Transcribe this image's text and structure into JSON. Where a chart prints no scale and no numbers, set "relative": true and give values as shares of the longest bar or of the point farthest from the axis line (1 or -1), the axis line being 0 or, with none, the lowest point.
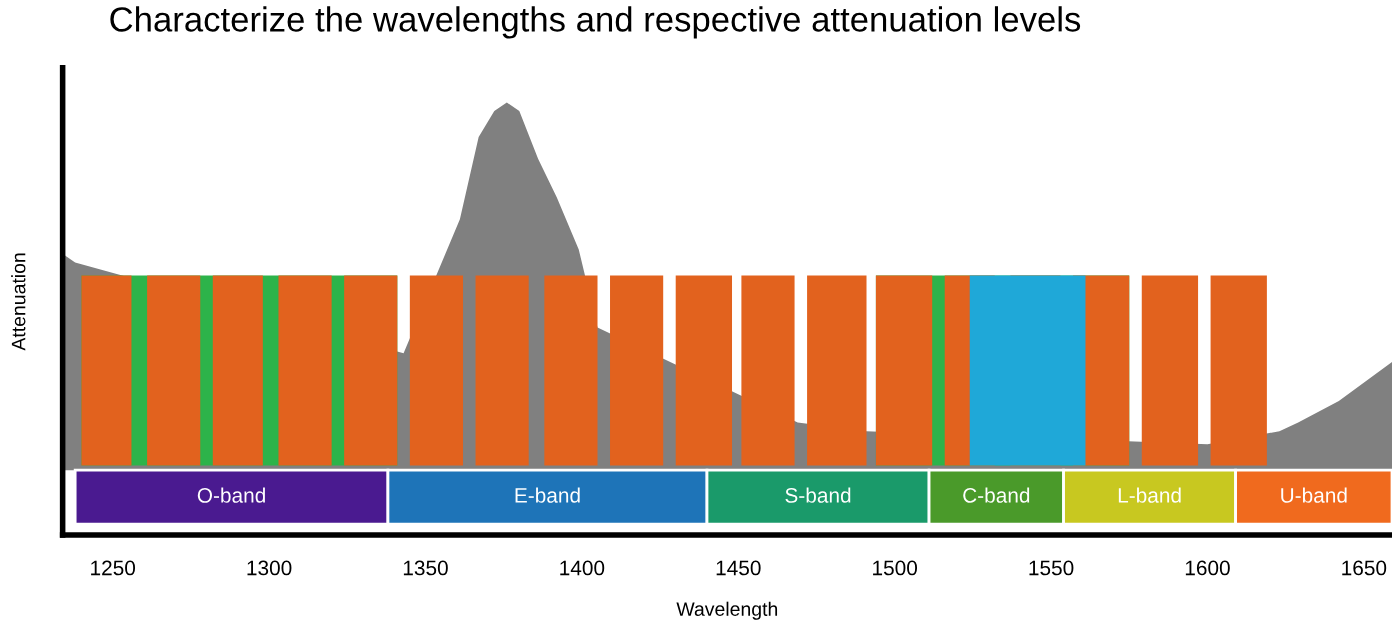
{
  "chart_data": {
    "type": "area",
    "relative": true,
    "title": "Characterize the wavelengths and respective attenuation levels",
    "xlabel": "Wavelength",
    "ylabel": "Attenuation",
    "xlim": [
      1234,
      1659
    ],
    "xticks": [
      1250,
      1300,
      1350,
      1400,
      1450,
      1500,
      1550,
      1600,
      1650
    ],
    "grid": false,
    "legend": false,
    "series": [
      {
        "color": "#808080",
        "x": [
          1234,
          1238,
          1343,
          1361,
          1367,
          1372,
          1376,
          1380,
          1386,
          1392,
          1399,
          1405,
          1469,
          1491,
          1600,
          1623,
          1629,
          1642,
          1659
        ],
        "values": [
          0.65,
          0.63,
          0.42,
          0.73,
          0.92,
          0.98,
          1.0,
          0.98,
          0.87,
          0.78,
          0.66,
          0.48,
          0.26,
          0.24,
          0.21,
          0.24,
          0.26,
          0.31,
          0.4
        ]
      }
    ],
    "bands": [
      {
        "axis": "x",
        "from": 1240,
        "to": 1341,
        "color": "#2db34a"
      },
      {
        "axis": "x",
        "from": 1494,
        "to": 1575,
        "color": "#2db34a"
      },
      {
        "axis": "x",
        "from": 1240,
        "to": 1256,
        "color": "#e2621e"
      },
      {
        "axis": "x",
        "from": 1261,
        "to": 1278,
        "color": "#e2621e"
      },
      {
        "axis": "x",
        "from": 1282,
        "to": 1298,
        "color": "#e2621e"
      },
      {
        "axis": "x",
        "from": 1303,
        "to": 1320,
        "color": "#e2621e"
      },
      {
        "axis": "x",
        "from": 1324,
        "to": 1341,
        "color": "#e2621e"
      },
      {
        "axis": "x",
        "from": 1345,
        "to": 1362,
        "color": "#e2621e"
      },
      {
        "axis": "x",
        "from": 1366,
        "to": 1383,
        "color": "#e2621e"
      },
      {
        "axis": "x",
        "from": 1388,
        "to": 1405,
        "color": "#e2621e"
      },
      {
        "axis": "x",
        "from": 1409,
        "to": 1426,
        "color": "#e2621e"
      },
      {
        "axis": "x",
        "from": 1430,
        "to": 1448,
        "color": "#e2621e"
      },
      {
        "axis": "x",
        "from": 1451,
        "to": 1468,
        "color": "#e2621e"
      },
      {
        "axis": "x",
        "from": 1472,
        "to": 1491,
        "color": "#e2621e"
      },
      {
        "axis": "x",
        "from": 1494,
        "to": 1512,
        "color": "#e2621e"
      },
      {
        "axis": "x",
        "from": 1516,
        "to": 1532,
        "color": "#e2621e"
      },
      {
        "axis": "x",
        "from": 1537,
        "to": 1553,
        "color": "#e2621e"
      },
      {
        "axis": "x",
        "from": 1557,
        "to": 1575,
        "color": "#e2621e"
      },
      {
        "axis": "x",
        "from": 1579,
        "to": 1597,
        "color": "#e2621e"
      },
      {
        "axis": "x",
        "from": 1601,
        "to": 1619,
        "color": "#e2621e"
      },
      {
        "axis": "x",
        "from": 1524,
        "to": 1561,
        "color": "#1fa8d8"
      },
      {
        "axis": "x",
        "from": 1238,
        "to": 1338,
        "label": "O-band",
        "color": "#4a1a90"
      },
      {
        "axis": "x",
        "from": 1338,
        "to": 1440,
        "label": "E-band",
        "color": "#1e74b8"
      },
      {
        "axis": "x",
        "from": 1440,
        "to": 1511,
        "label": "S-band",
        "color": "#1a9a6a"
      },
      {
        "axis": "x",
        "from": 1511,
        "to": 1554,
        "label": "C-band",
        "color": "#4a9a2a"
      },
      {
        "axis": "x",
        "from": 1554,
        "to": 1609,
        "label": "L-band",
        "color": "#c8c820"
      },
      {
        "axis": "x",
        "from": 1609,
        "to": 1659,
        "label": "U-band",
        "color": "#f06a1e"
      }
    ]
  }
}
